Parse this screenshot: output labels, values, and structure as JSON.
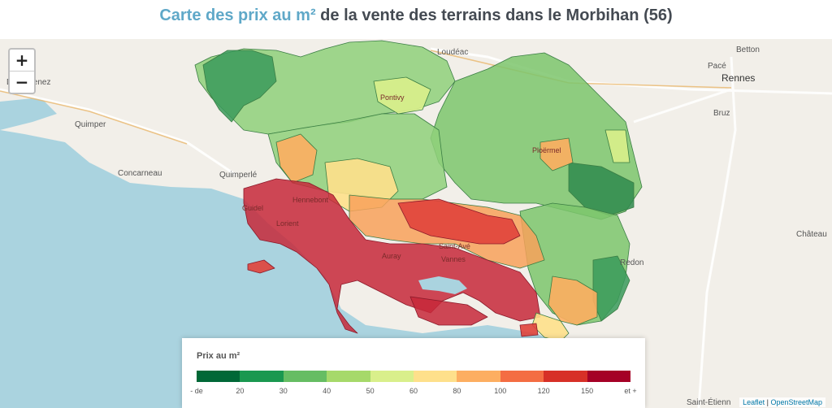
{
  "title": {
    "accent": "Carte des prix au m²",
    "rest": " de la vente des terrains dans le Morbihan (56)"
  },
  "zoom": {
    "in_label": "+",
    "out_label": "−"
  },
  "cities": {
    "douarnenez": "Douarnenez",
    "quimper": "Quimper",
    "concarneau": "Concarneau",
    "quimperle": "Quimperlé",
    "loudeac": "Loudéac",
    "pontivy": "Pontivy",
    "ploermel": "Ploërmel",
    "hennebont": "Hennebont",
    "lorient": "Lorient",
    "guidel": "Guidel",
    "saint_ave": "Saint-Avé",
    "vannes": "Vannes",
    "auray": "Auray",
    "redon": "Redon",
    "pace": "Pacé",
    "betton": "Betton",
    "rennes": "Rennes",
    "bruz": "Bruz",
    "chateaubriant": "Château",
    "saint_etienne": "Saint-Étienn"
  },
  "legend": {
    "title": "Prix au m²",
    "colors": [
      "#006837",
      "#1a9850",
      "#66bd63",
      "#a6d96a",
      "#d9ef8b",
      "#fee08b",
      "#fdae61",
      "#f46d43",
      "#d73027",
      "#a50026"
    ],
    "ticks": [
      "- de",
      "20",
      "30",
      "40",
      "50",
      "60",
      "80",
      "100",
      "120",
      "150",
      "et +"
    ]
  },
  "attribution": {
    "leaflet": "Leaflet",
    "sep": " | ",
    "osm": "OpenStreetMap"
  },
  "colors": {
    "sea": "#aad3df",
    "land": "#f2efe9",
    "accent": "#5fa8c8"
  }
}
